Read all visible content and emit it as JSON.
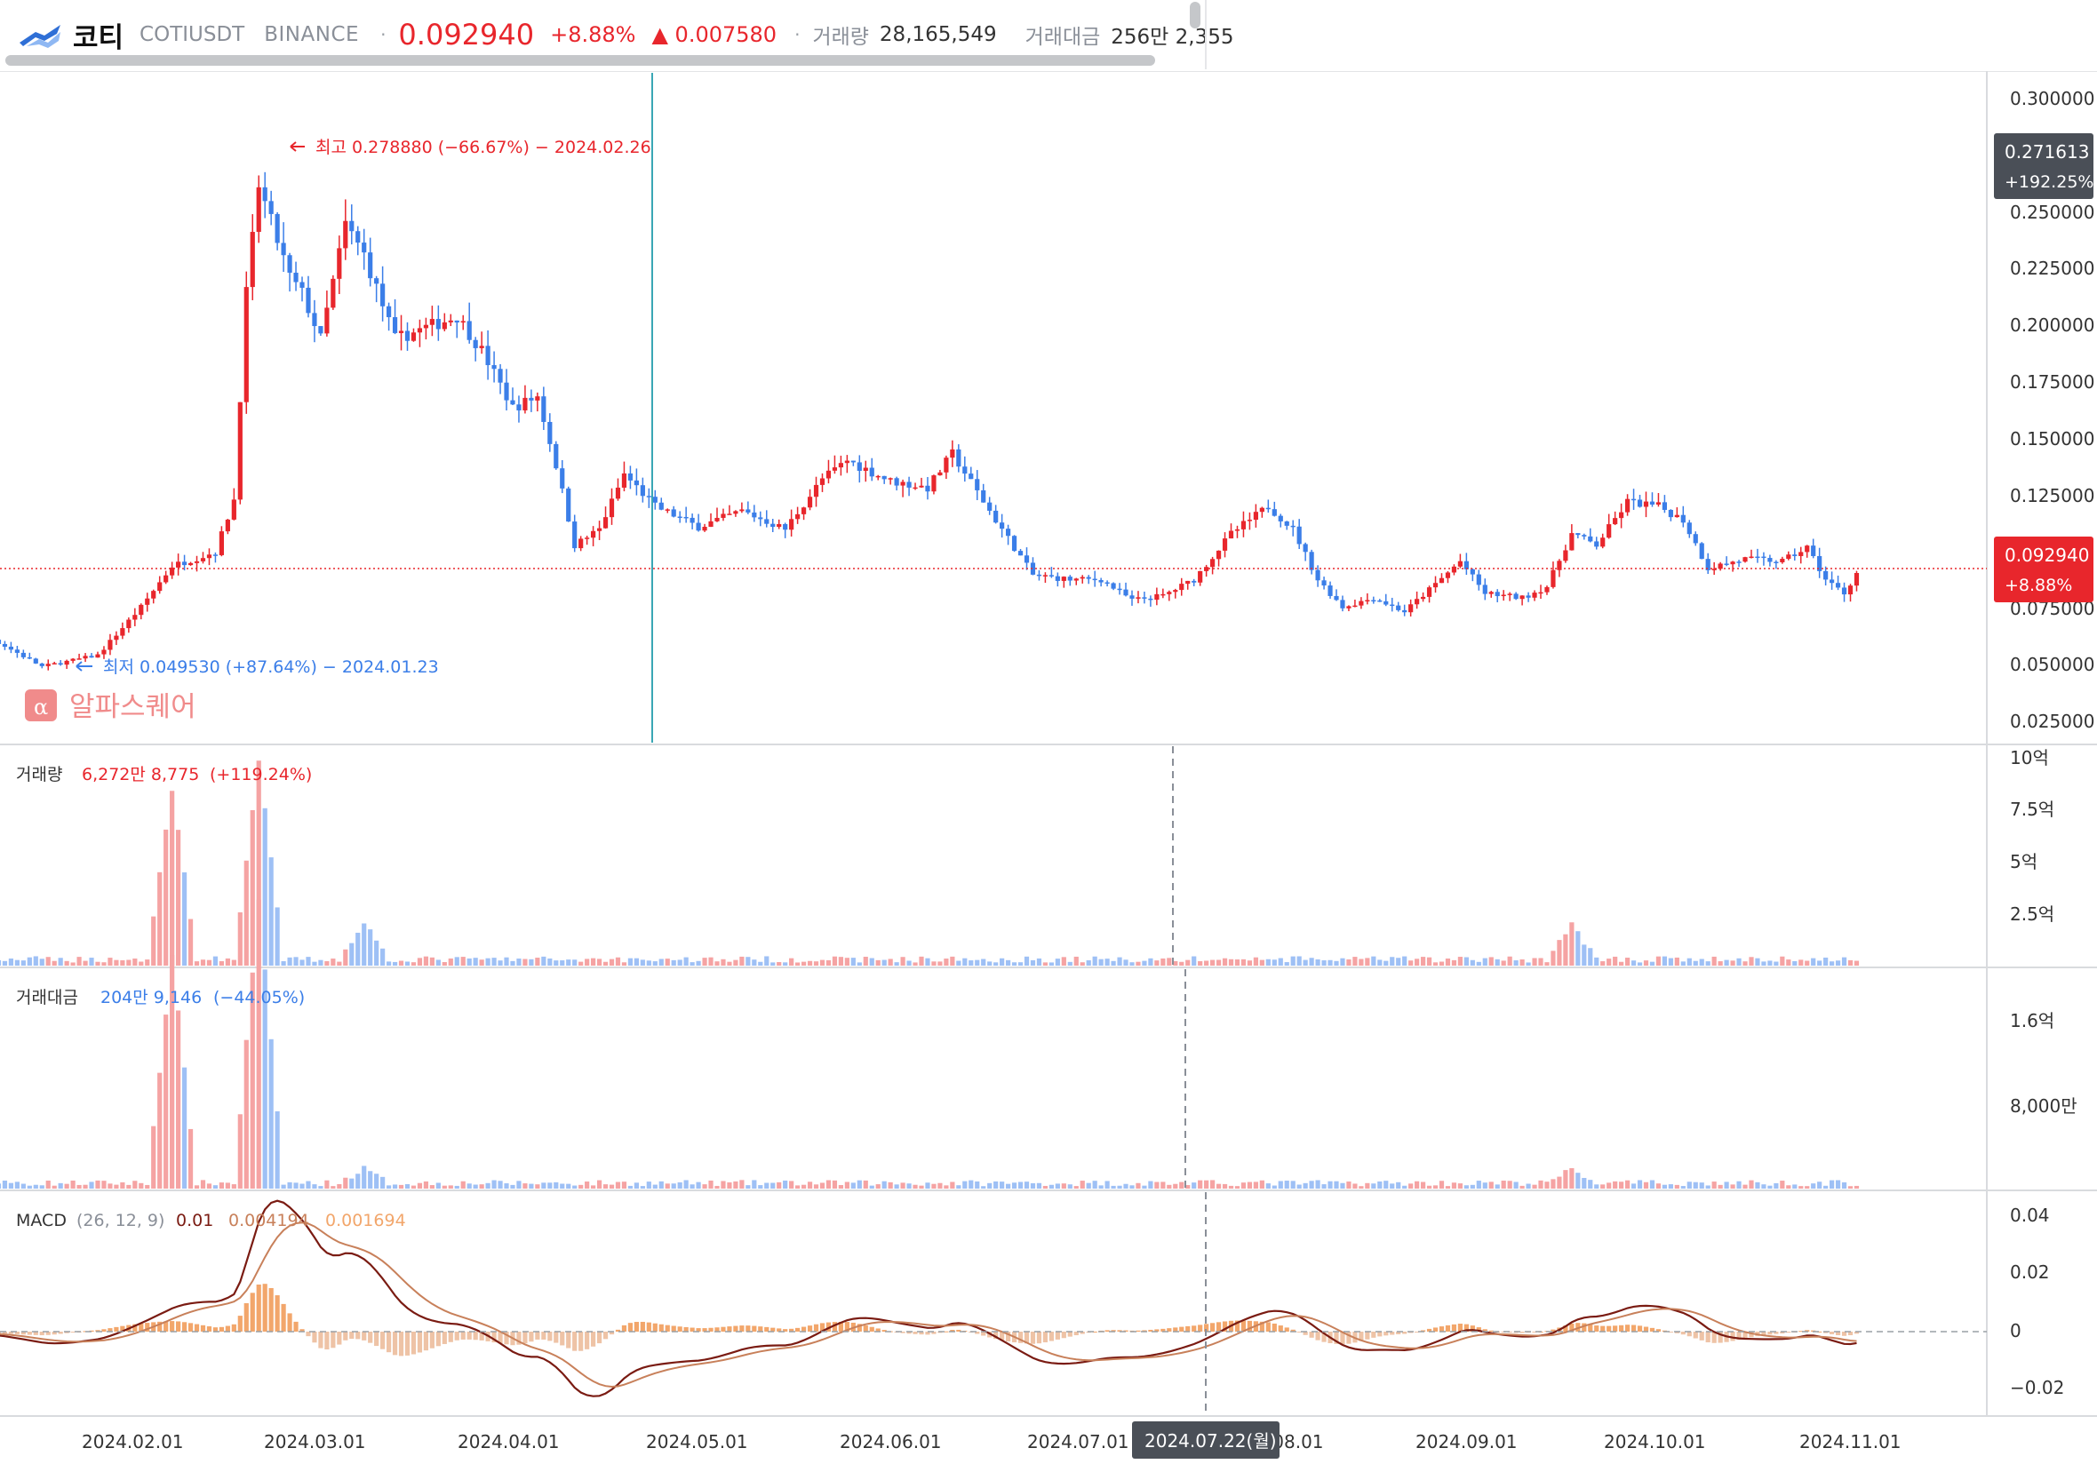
{
  "header": {
    "coin_name": "코티",
    "symbol": "COTIUSDT",
    "exchange": "BINANCE",
    "price": "0.092940",
    "change_pct": "+8.88%",
    "change_abs": "▲ 0.007580",
    "volume_label": "거래량",
    "volume_value": "28,165,549",
    "turnover_label": "거래대금",
    "turnover_value": "256만 2,355"
  },
  "price_panel": {
    "high_marker": "최고 0.278880 (−66.67%) − 2024.02.26",
    "low_marker": "최저 0.049530 (+87.64%) − 2024.01.23",
    "watermark": "알파스퀘어",
    "y_ticks": [
      "0.300000",
      "0.250000",
      "0.225000",
      "0.200000",
      "0.175000",
      "0.150000",
      "0.125000",
      "0.075000",
      "0.050000",
      "0.025000"
    ],
    "crosshair_label": [
      "0.271613",
      "+192.25%"
    ],
    "last_price_label": [
      "0.092940",
      "+8.88%"
    ]
  },
  "volume_panel": {
    "title": "거래량",
    "value": "6,272만 8,775",
    "change": "(+119.24%)",
    "y_ticks": [
      "10억",
      "7.5억",
      "5억",
      "2.5억"
    ]
  },
  "turnover_panel": {
    "title": "거래대금",
    "value": "204만 9,146",
    "change": "(−44.05%)",
    "y_ticks": [
      "1.6억",
      "8,000만"
    ]
  },
  "macd_panel": {
    "title": "MACD",
    "params": "(26, 12, 9)",
    "macd": "0.01",
    "signal": "0.004194",
    "hist": "0.001694",
    "y_ticks": [
      "0.04",
      "0.02",
      "0",
      "−0.02"
    ]
  },
  "x_axis": {
    "ticks": [
      "2024.02.01",
      "2024.03.01",
      "2024.04.01",
      "2024.05.01",
      "2024.06.01",
      "2024.07.01",
      "2024.08.01",
      "2024.09.01",
      "2024.10.01",
      "2024.11.01"
    ],
    "crosshair_date": "2024.07.22(월)"
  },
  "colors": {
    "up": "#e8262c",
    "down": "#3b7ee8",
    "vol_up": "#f5a3a3",
    "vol_down": "#9ec0f5",
    "macd_line": "#7a1b12",
    "signal_line": "#c8805a",
    "hist": "#f2a66b",
    "hist_neg": "#eec3a6",
    "accent_teal": "#3aa7b5"
  },
  "chart_data": {
    "type": "candlestick",
    "title": "",
    "price_range": [
      0.02,
      0.31
    ],
    "anchor_points": [
      [
        "2024-01-05",
        0.069
      ],
      [
        "2024-01-15",
        0.064
      ],
      [
        "2024-01-23",
        0.052
      ],
      [
        "2024-02-01",
        0.057
      ],
      [
        "2024-02-08",
        0.078
      ],
      [
        "2024-02-13",
        0.096
      ],
      [
        "2024-02-20",
        0.102
      ],
      [
        "2024-02-23",
        0.125
      ],
      [
        "2024-02-25",
        0.215
      ],
      [
        "2024-02-27",
        0.262
      ],
      [
        "2024-03-03",
        0.222
      ],
      [
        "2024-03-05",
        0.215
      ],
      [
        "2024-03-08",
        0.195
      ],
      [
        "2024-03-12",
        0.245
      ],
      [
        "2024-03-15",
        0.232
      ],
      [
        "2024-03-20",
        0.195
      ],
      [
        "2024-03-25",
        0.2
      ],
      [
        "2024-03-30",
        0.205
      ],
      [
        "2024-04-03",
        0.19
      ],
      [
        "2024-04-08",
        0.165
      ],
      [
        "2024-04-12",
        0.17
      ],
      [
        "2024-04-15",
        0.14
      ],
      [
        "2024-04-18",
        0.105
      ],
      [
        "2024-04-22",
        0.112
      ],
      [
        "2024-04-26",
        0.136
      ],
      [
        "2024-05-01",
        0.122
      ],
      [
        "2024-05-08",
        0.113
      ],
      [
        "2024-05-15",
        0.12
      ],
      [
        "2024-05-22",
        0.112
      ],
      [
        "2024-05-28",
        0.134
      ],
      [
        "2024-06-01",
        0.142
      ],
      [
        "2024-06-08",
        0.133
      ],
      [
        "2024-06-14",
        0.13
      ],
      [
        "2024-06-18",
        0.145
      ],
      [
        "2024-06-24",
        0.12
      ],
      [
        "2024-07-01",
        0.092
      ],
      [
        "2024-07-07",
        0.09
      ],
      [
        "2024-07-12",
        0.09
      ],
      [
        "2024-07-17",
        0.081
      ],
      [
        "2024-07-22",
        0.083
      ],
      [
        "2024-07-27",
        0.09
      ],
      [
        "2024-08-02",
        0.11
      ],
      [
        "2024-08-08",
        0.122
      ],
      [
        "2024-08-12",
        0.112
      ],
      [
        "2024-08-16",
        0.09
      ],
      [
        "2024-08-20",
        0.078
      ],
      [
        "2024-08-25",
        0.082
      ],
      [
        "2024-08-30",
        0.076
      ],
      [
        "2024-09-04",
        0.088
      ],
      [
        "2024-09-08",
        0.098
      ],
      [
        "2024-09-12",
        0.084
      ],
      [
        "2024-09-18",
        0.082
      ],
      [
        "2024-09-22",
        0.087
      ],
      [
        "2024-09-26",
        0.11
      ],
      [
        "2024-09-30",
        0.105
      ],
      [
        "2024-10-05",
        0.124
      ],
      [
        "2024-10-10",
        0.122
      ],
      [
        "2024-10-14",
        0.116
      ],
      [
        "2024-10-18",
        0.095
      ],
      [
        "2024-10-24",
        0.099
      ],
      [
        "2024-10-30",
        0.098
      ],
      [
        "2024-11-03",
        0.104
      ],
      [
        "2024-11-06",
        0.09
      ],
      [
        "2024-11-09",
        0.084
      ],
      [
        "2024-11-11",
        0.0929
      ]
    ],
    "volume_spikes": [
      [
        "2024-02-13",
        0.82
      ],
      [
        "2024-02-27",
        0.95
      ],
      [
        "2024-03-15",
        0.18
      ],
      [
        "2024-09-26",
        0.17
      ]
    ],
    "turnover_spikes": [
      [
        "2024-02-13",
        0.78
      ],
      [
        "2024-02-27",
        1.0
      ]
    ],
    "macd_peak": 0.035,
    "macd_trough": -0.02
  }
}
